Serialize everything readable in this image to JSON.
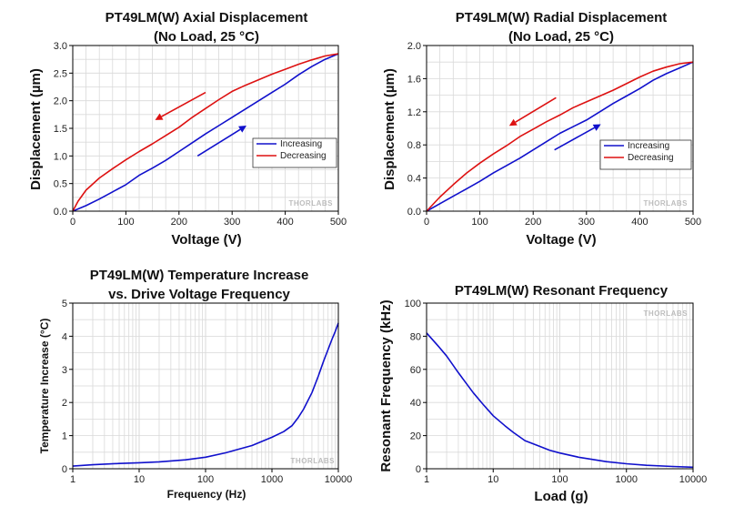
{
  "watermark": "THORLABS",
  "colors": {
    "increasing": "#1010cc",
    "decreasing": "#dd1111",
    "curve": "#1010cc",
    "grid": "#d9d9d9",
    "axis": "#000000"
  },
  "chart_data": [
    {
      "id": "axial",
      "type": "line",
      "title": [
        "PT49LM(W) Axial Displacement",
        "(No Load, 25 °C)"
      ],
      "xlabel": "Voltage (V)",
      "ylabel": "Displacement (µm)",
      "xlim": [
        0,
        500
      ],
      "ylim": [
        0,
        3.0
      ],
      "xticks": [
        0,
        100,
        200,
        300,
        400,
        500
      ],
      "xtick_labels": [
        "0",
        "100",
        "200",
        "300",
        "400",
        "500"
      ],
      "yticks": [
        0,
        0.5,
        1.0,
        1.5,
        2.0,
        2.5,
        3.0
      ],
      "ytick_labels": [
        "0.0",
        "0.5",
        "1.0",
        "1.5",
        "2.0",
        "2.5",
        "3.0"
      ],
      "xscale": "linear",
      "grid": true,
      "legend": "right",
      "series": [
        {
          "name": "Increasing",
          "color": "#1010cc",
          "x": [
            0,
            25,
            50,
            75,
            100,
            125,
            150,
            175,
            200,
            225,
            250,
            275,
            300,
            325,
            350,
            375,
            400,
            425,
            450,
            475,
            500
          ],
          "y": [
            0,
            0.1,
            0.22,
            0.35,
            0.48,
            0.65,
            0.78,
            0.92,
            1.08,
            1.24,
            1.4,
            1.55,
            1.7,
            1.85,
            2.0,
            2.15,
            2.3,
            2.47,
            2.62,
            2.75,
            2.85
          ]
        },
        {
          "name": "Decreasing",
          "color": "#dd1111",
          "x": [
            0,
            10,
            25,
            50,
            75,
            100,
            125,
            150,
            175,
            200,
            225,
            250,
            275,
            300,
            325,
            350,
            375,
            400,
            425,
            450,
            475,
            500
          ],
          "y": [
            0,
            0.18,
            0.38,
            0.6,
            0.77,
            0.93,
            1.08,
            1.22,
            1.37,
            1.52,
            1.7,
            1.86,
            2.02,
            2.17,
            2.28,
            2.38,
            2.48,
            2.57,
            2.66,
            2.74,
            2.81,
            2.85
          ]
        }
      ],
      "arrows": [
        {
          "color": "#dd1111",
          "from": [
            250,
            2.15
          ],
          "to": [
            155,
            1.65
          ]
        },
        {
          "color": "#1010cc",
          "from": [
            235,
            1.0
          ],
          "to": [
            327,
            1.55
          ]
        }
      ]
    },
    {
      "id": "radial",
      "type": "line",
      "title": [
        "PT49LM(W) Radial Displacement",
        "(No Load, 25 °C)"
      ],
      "xlabel": "Voltage (V)",
      "ylabel": "Displacement (µm)",
      "xlim": [
        0,
        500
      ],
      "ylim": [
        0,
        2.0
      ],
      "xticks": [
        0,
        100,
        200,
        300,
        400,
        500
      ],
      "xtick_labels": [
        "0",
        "100",
        "200",
        "300",
        "400",
        "500"
      ],
      "yticks": [
        0,
        0.4,
        0.8,
        1.2,
        1.6,
        2.0
      ],
      "ytick_labels": [
        "0.0",
        "0.4",
        "0.8",
        "1.2",
        "1.6",
        "2.0"
      ],
      "xscale": "linear",
      "grid": true,
      "legend": "right",
      "series": [
        {
          "name": "Increasing",
          "color": "#1010cc",
          "x": [
            0,
            25,
            50,
            75,
            100,
            125,
            150,
            175,
            200,
            225,
            250,
            275,
            300,
            325,
            350,
            375,
            400,
            425,
            450,
            475,
            500
          ],
          "y": [
            0,
            0.09,
            0.18,
            0.27,
            0.36,
            0.46,
            0.55,
            0.64,
            0.74,
            0.84,
            0.94,
            1.02,
            1.1,
            1.2,
            1.3,
            1.39,
            1.48,
            1.58,
            1.66,
            1.73,
            1.8
          ]
        },
        {
          "name": "Decreasing",
          "color": "#dd1111",
          "x": [
            0,
            25,
            50,
            75,
            100,
            125,
            150,
            175,
            200,
            225,
            250,
            275,
            300,
            325,
            350,
            375,
            400,
            425,
            450,
            475,
            500
          ],
          "y": [
            0,
            0.17,
            0.32,
            0.46,
            0.58,
            0.69,
            0.79,
            0.9,
            0.99,
            1.08,
            1.16,
            1.25,
            1.32,
            1.39,
            1.46,
            1.54,
            1.62,
            1.69,
            1.74,
            1.78,
            1.8
          ]
        }
      ],
      "arrows": [
        {
          "color": "#dd1111",
          "from": [
            243,
            1.37
          ],
          "to": [
            155,
            1.03
          ]
        },
        {
          "color": "#1010cc",
          "from": [
            240,
            0.74
          ],
          "to": [
            327,
            1.05
          ]
        }
      ]
    },
    {
      "id": "temperature",
      "type": "line",
      "title": [
        "PT49LM(W) Temperature Increase",
        "vs. Drive Voltage Frequency"
      ],
      "xlabel": "Frequency (Hz)",
      "ylabel": "Temperature Increase (°C)",
      "xlim": [
        1,
        10000
      ],
      "ylim": [
        0,
        5
      ],
      "xticks": [
        1,
        10,
        100,
        1000,
        10000
      ],
      "xtick_labels": [
        "1",
        "10",
        "100",
        "1000",
        "10000"
      ],
      "yticks": [
        0,
        1,
        2,
        3,
        4,
        5
      ],
      "ytick_labels": [
        "0",
        "1",
        "2",
        "3",
        "4",
        "5"
      ],
      "xscale": "log",
      "grid": true,
      "series": [
        {
          "color": "#1010cc",
          "x": [
            1,
            2,
            5,
            10,
            20,
            50,
            100,
            200,
            500,
            1000,
            1500,
            2000,
            2500,
            3000,
            4000,
            5000,
            6000,
            7000,
            8000,
            9000,
            10000
          ],
          "y": [
            0.08,
            0.12,
            0.16,
            0.18,
            0.21,
            0.27,
            0.35,
            0.48,
            0.7,
            0.95,
            1.12,
            1.3,
            1.55,
            1.8,
            2.3,
            2.8,
            3.25,
            3.6,
            3.9,
            4.15,
            4.4
          ]
        }
      ]
    },
    {
      "id": "resonant",
      "type": "line",
      "title": [
        "PT49LM(W) Resonant Frequency"
      ],
      "xlabel": "Load (g)",
      "ylabel": "Resonant Frequency (kHz)",
      "xlim": [
        1,
        10000
      ],
      "ylim": [
        0,
        100
      ],
      "xticks": [
        1,
        10,
        100,
        1000,
        10000
      ],
      "xtick_labels": [
        "1",
        "10",
        "100",
        "1000",
        "10000"
      ],
      "yticks": [
        0,
        20,
        40,
        60,
        80,
        100
      ],
      "ytick_labels": [
        "0",
        "20",
        "40",
        "60",
        "80",
        "100"
      ],
      "xscale": "log",
      "grid": true,
      "series": [
        {
          "color": "#1010cc",
          "x": [
            1,
            1.5,
            2,
            3,
            5,
            7,
            10,
            15,
            20,
            30,
            50,
            70,
            100,
            200,
            500,
            1000,
            2000,
            5000,
            10000
          ],
          "y": [
            82,
            74,
            68,
            58,
            46,
            39,
            32,
            26,
            22,
            17,
            13.5,
            11.2,
            9.5,
            6.8,
            4.3,
            3.0,
            2.1,
            1.35,
            0.95
          ]
        }
      ]
    }
  ]
}
